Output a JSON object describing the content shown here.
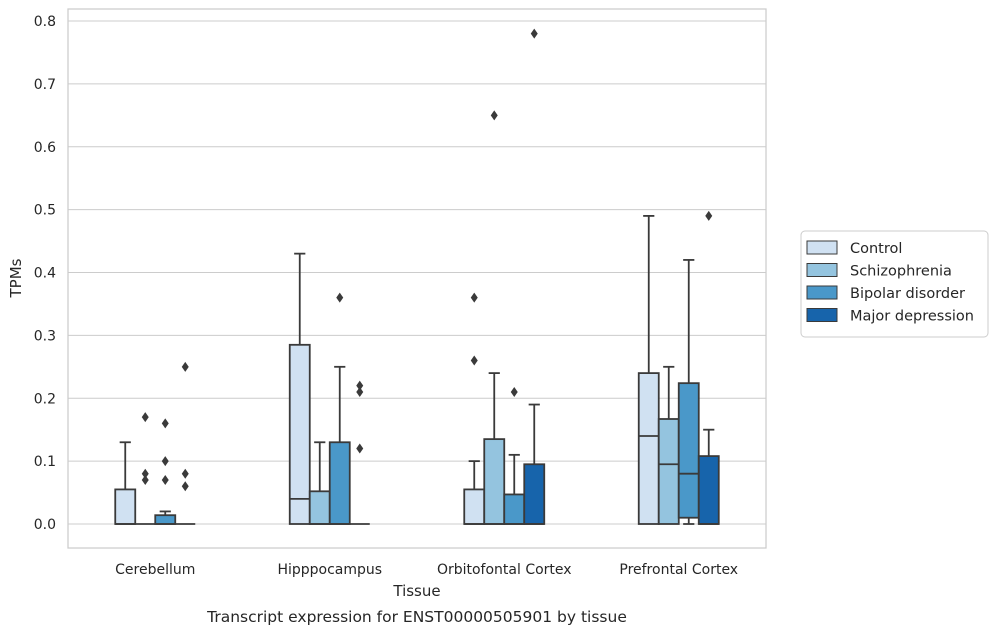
{
  "caption": "Transcript expression for ENST00000505901 by tissue",
  "chart_data": {
    "type": "box",
    "xlabel": "Tissue",
    "ylabel": "TPMs",
    "ylim": [
      -0.04,
      0.82
    ],
    "yticks": [
      0.0,
      0.1,
      0.2,
      0.3,
      0.4,
      0.5,
      0.6,
      0.7,
      0.8
    ],
    "ytick_labels": [
      "0.0",
      "0.1",
      "0.2",
      "0.3",
      "0.4",
      "0.5",
      "0.6",
      "0.7",
      "0.8"
    ],
    "grid": "horizontal",
    "legend_position": "right",
    "categories": [
      "Cerebellum",
      "Hipppocampus",
      "Orbitofontal Cortex",
      "Prefrontal Cortex"
    ],
    "series": [
      {
        "name": "Control",
        "color": "#d0e1f2",
        "boxes": [
          {
            "q1": 0.0,
            "median": 0.0,
            "q3": 0.055,
            "whisker_low": 0.0,
            "whisker_high": 0.13,
            "outliers": []
          },
          {
            "q1": 0.0,
            "median": 0.04,
            "q3": 0.285,
            "whisker_low": 0.0,
            "whisker_high": 0.43,
            "outliers": []
          },
          {
            "q1": 0.0,
            "median": 0.0,
            "q3": 0.055,
            "whisker_low": 0.0,
            "whisker_high": 0.1,
            "outliers": [
              0.26,
              0.36
            ]
          },
          {
            "q1": 0.0,
            "median": 0.14,
            "q3": 0.24,
            "whisker_low": 0.0,
            "whisker_high": 0.49,
            "outliers": []
          }
        ]
      },
      {
        "name": "Schizophrenia",
        "color": "#94c4df",
        "boxes": [
          {
            "q1": 0.0,
            "median": 0.0,
            "q3": 0.0,
            "whisker_low": 0.0,
            "whisker_high": 0.0,
            "outliers": [
              0.07,
              0.08,
              0.17
            ]
          },
          {
            "q1": 0.0,
            "median": 0.0,
            "q3": 0.052,
            "whisker_low": 0.0,
            "whisker_high": 0.13,
            "outliers": []
          },
          {
            "q1": 0.0,
            "median": 0.0,
            "q3": 0.135,
            "whisker_low": 0.0,
            "whisker_high": 0.24,
            "outliers": [
              0.65
            ]
          },
          {
            "q1": 0.0,
            "median": 0.095,
            "q3": 0.167,
            "whisker_low": 0.0,
            "whisker_high": 0.25,
            "outliers": []
          }
        ]
      },
      {
        "name": "Bipolar disorder",
        "color": "#4a98c9",
        "boxes": [
          {
            "q1": 0.0,
            "median": 0.0,
            "q3": 0.014,
            "whisker_low": 0.0,
            "whisker_high": 0.02,
            "outliers": [
              0.07,
              0.1,
              0.16
            ]
          },
          {
            "q1": 0.0,
            "median": 0.0,
            "q3": 0.13,
            "whisker_low": 0.0,
            "whisker_high": 0.25,
            "outliers": [
              0.36
            ]
          },
          {
            "q1": 0.0,
            "median": 0.0,
            "q3": 0.047,
            "whisker_low": 0.0,
            "whisker_high": 0.11,
            "outliers": [
              0.21
            ]
          },
          {
            "q1": 0.01,
            "median": 0.08,
            "q3": 0.224,
            "whisker_low": 0.0,
            "whisker_high": 0.42,
            "outliers": []
          }
        ]
      },
      {
        "name": "Major depression",
        "color": "#1764ab",
        "boxes": [
          {
            "q1": 0.0,
            "median": 0.0,
            "q3": 0.0,
            "whisker_low": 0.0,
            "whisker_high": 0.0,
            "outliers": [
              0.06,
              0.08,
              0.25
            ]
          },
          {
            "q1": 0.0,
            "median": 0.0,
            "q3": 0.0,
            "whisker_low": 0.0,
            "whisker_high": 0.0,
            "outliers": [
              0.12,
              0.21,
              0.22
            ]
          },
          {
            "q1": 0.0,
            "median": 0.0,
            "q3": 0.095,
            "whisker_low": 0.0,
            "whisker_high": 0.19,
            "outliers": [
              0.78
            ]
          },
          {
            "q1": 0.0,
            "median": 0.0,
            "q3": 0.108,
            "whisker_low": 0.0,
            "whisker_high": 0.15,
            "outliers": [
              0.49
            ]
          }
        ]
      }
    ]
  }
}
